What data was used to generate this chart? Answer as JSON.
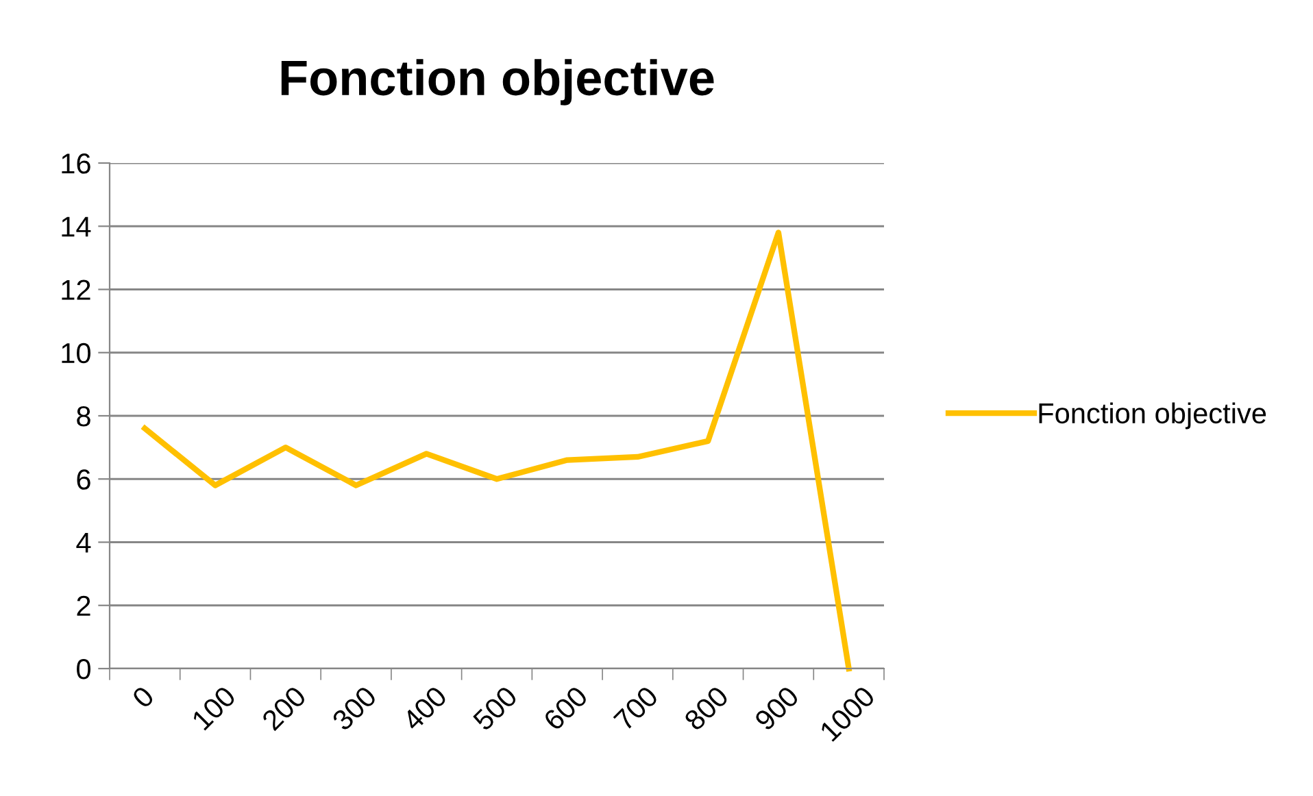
{
  "chart_data": {
    "type": "line",
    "title": "Fonction objective",
    "categories": [
      "0",
      "100",
      "200",
      "300",
      "400",
      "500",
      "600",
      "700",
      "800",
      "900",
      "1000"
    ],
    "series": [
      {
        "name": "Fonction objective",
        "color": "#ffc000",
        "values": [
          7.6,
          5.8,
          7.0,
          5.8,
          6.8,
          6.0,
          6.6,
          6.7,
          7.2,
          13.8,
          0
        ]
      }
    ],
    "ylim": [
      0,
      16
    ],
    "yticks": [
      0,
      2,
      4,
      6,
      8,
      10,
      12,
      14,
      16
    ],
    "grid": "y",
    "legend": "right",
    "marker": "none",
    "line_style": "solid"
  }
}
